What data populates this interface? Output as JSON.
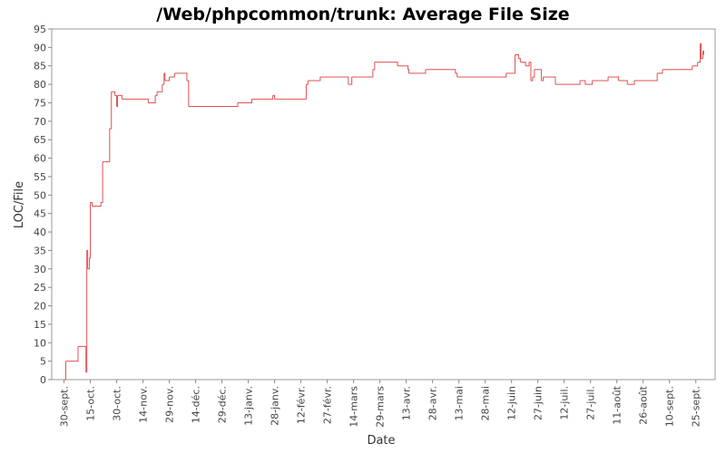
{
  "chart_data": {
    "type": "line",
    "step": "post",
    "title": "/Web/phpcommon/trunk: Average File Size",
    "xlabel": "Date",
    "ylabel": "LOC/File",
    "series": [
      {
        "name": "LOC/File",
        "color": "#e05050",
        "x": [
          0,
          1,
          8,
          12.5,
          13,
          13.5,
          14.5,
          15,
          16,
          21,
          22,
          26,
          27,
          29,
          30,
          30.5,
          33,
          48,
          52,
          53,
          56,
          57,
          57.5,
          60,
          63,
          70,
          71,
          99,
          107,
          119,
          120,
          138,
          139,
          146,
          162,
          164,
          176,
          177,
          190,
          196,
          196.5,
          206,
          223,
          224,
          238,
          252,
          257,
          259,
          260,
          263,
          265,
          266,
          267,
          268,
          272,
          273,
          280,
          294,
          297,
          301,
          310,
          316,
          321,
          325,
          338,
          341,
          348,
          357,
          358,
          361,
          362.5,
          363,
          364,
          364.5
        ],
        "values": [
          0,
          5,
          9,
          2,
          35,
          30,
          33,
          48,
          47,
          48,
          59,
          68,
          78,
          77,
          74,
          77,
          76,
          75,
          77,
          78,
          80,
          83,
          81,
          82,
          83,
          81,
          74,
          75,
          76,
          77,
          76,
          80,
          81,
          82,
          80,
          82,
          84,
          86,
          85,
          84,
          83,
          84,
          83,
          82,
          82,
          83,
          88,
          87,
          86,
          85,
          86,
          81,
          82,
          84,
          81,
          82,
          80,
          81,
          80,
          81,
          82,
          81,
          80,
          81,
          83,
          84,
          84,
          84,
          85,
          86,
          91,
          87,
          89,
          88
        ]
      }
    ],
    "xlim": [
      -7,
      371
    ],
    "xticks": [
      {
        "value": 0,
        "label": "30-sept."
      },
      {
        "value": 15,
        "label": "15-oct."
      },
      {
        "value": 30,
        "label": "30-oct."
      },
      {
        "value": 45,
        "label": "14-nov."
      },
      {
        "value": 60,
        "label": "29-nov."
      },
      {
        "value": 75,
        "label": "14-déc."
      },
      {
        "value": 90,
        "label": "29-déc."
      },
      {
        "value": 105,
        "label": "13-janv."
      },
      {
        "value": 120,
        "label": "28-janv."
      },
      {
        "value": 135,
        "label": "12-févr."
      },
      {
        "value": 150,
        "label": "27-févr."
      },
      {
        "value": 165,
        "label": "14-mars"
      },
      {
        "value": 180,
        "label": "29-mars"
      },
      {
        "value": 195,
        "label": "13-avr."
      },
      {
        "value": 210,
        "label": "28-avr."
      },
      {
        "value": 225,
        "label": "13-mai"
      },
      {
        "value": 240,
        "label": "28-mai"
      },
      {
        "value": 255,
        "label": "12-juin"
      },
      {
        "value": 270,
        "label": "27-juin"
      },
      {
        "value": 285,
        "label": "12-juil."
      },
      {
        "value": 300,
        "label": "27-juil."
      },
      {
        "value": 315,
        "label": "11-août"
      },
      {
        "value": 330,
        "label": "26-août"
      },
      {
        "value": 345,
        "label": "10-sept."
      },
      {
        "value": 360,
        "label": "25-sept."
      }
    ],
    "ylim": [
      0,
      95
    ],
    "yticks": [
      0,
      5,
      10,
      15,
      20,
      25,
      30,
      35,
      40,
      45,
      50,
      55,
      60,
      65,
      70,
      75,
      80,
      85,
      90,
      95
    ],
    "grid": false
  }
}
